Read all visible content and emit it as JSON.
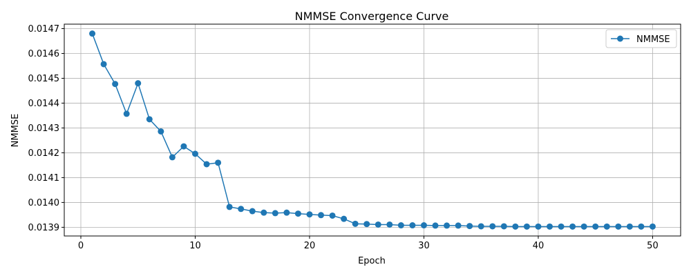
{
  "colors": {
    "series": "#1f77b4",
    "grid": "#b0b0b0",
    "axis": "#000000",
    "background": "#ffffff"
  },
  "chart_data": {
    "type": "line",
    "title": "NMMSE Convergence Curve",
    "xlabel": "Epoch",
    "ylabel": "NMMSE",
    "xlim": [
      -1.45,
      52.45
    ],
    "ylim": [
      0.013865,
      0.014718
    ],
    "x_ticks": [
      0,
      10,
      20,
      30,
      40,
      50
    ],
    "x_tick_labels": [
      "0",
      "10",
      "20",
      "30",
      "40",
      "50"
    ],
    "y_ticks": [
      0.0139,
      0.014,
      0.0141,
      0.0142,
      0.0143,
      0.0144,
      0.0145,
      0.0146,
      0.0147
    ],
    "y_tick_labels": [
      "0.0139",
      "0.0140",
      "0.0141",
      "0.0142",
      "0.0143",
      "0.0144",
      "0.0145",
      "0.0146",
      "0.0147"
    ],
    "grid": true,
    "legend_position": "top-right",
    "marker": "circle",
    "series": [
      {
        "name": "NMMSE",
        "x": [
          1,
          2,
          3,
          4,
          5,
          6,
          7,
          8,
          9,
          10,
          11,
          12,
          13,
          14,
          15,
          16,
          17,
          18,
          19,
          20,
          21,
          22,
          23,
          24,
          25,
          26,
          27,
          28,
          29,
          30,
          31,
          32,
          33,
          34,
          35,
          36,
          37,
          38,
          39,
          40,
          41,
          42,
          43,
          44,
          45,
          46,
          47,
          48,
          49,
          50
        ],
        "y": [
          0.01468,
          0.014557,
          0.014477,
          0.014357,
          0.01448,
          0.014335,
          0.014286,
          0.014182,
          0.014226,
          0.014196,
          0.014154,
          0.01416,
          0.013982,
          0.013974,
          0.013965,
          0.013959,
          0.013957,
          0.013959,
          0.013955,
          0.013952,
          0.013949,
          0.013947,
          0.013934,
          0.013914,
          0.013913,
          0.013911,
          0.013911,
          0.013908,
          0.013908,
          0.013908,
          0.013907,
          0.013907,
          0.013907,
          0.013905,
          0.013904,
          0.013904,
          0.013904,
          0.013903,
          0.013903,
          0.013903,
          0.013903,
          0.013903,
          0.013903,
          0.013903,
          0.013903,
          0.013903,
          0.013903,
          0.013903,
          0.013903,
          0.013903
        ]
      }
    ]
  }
}
